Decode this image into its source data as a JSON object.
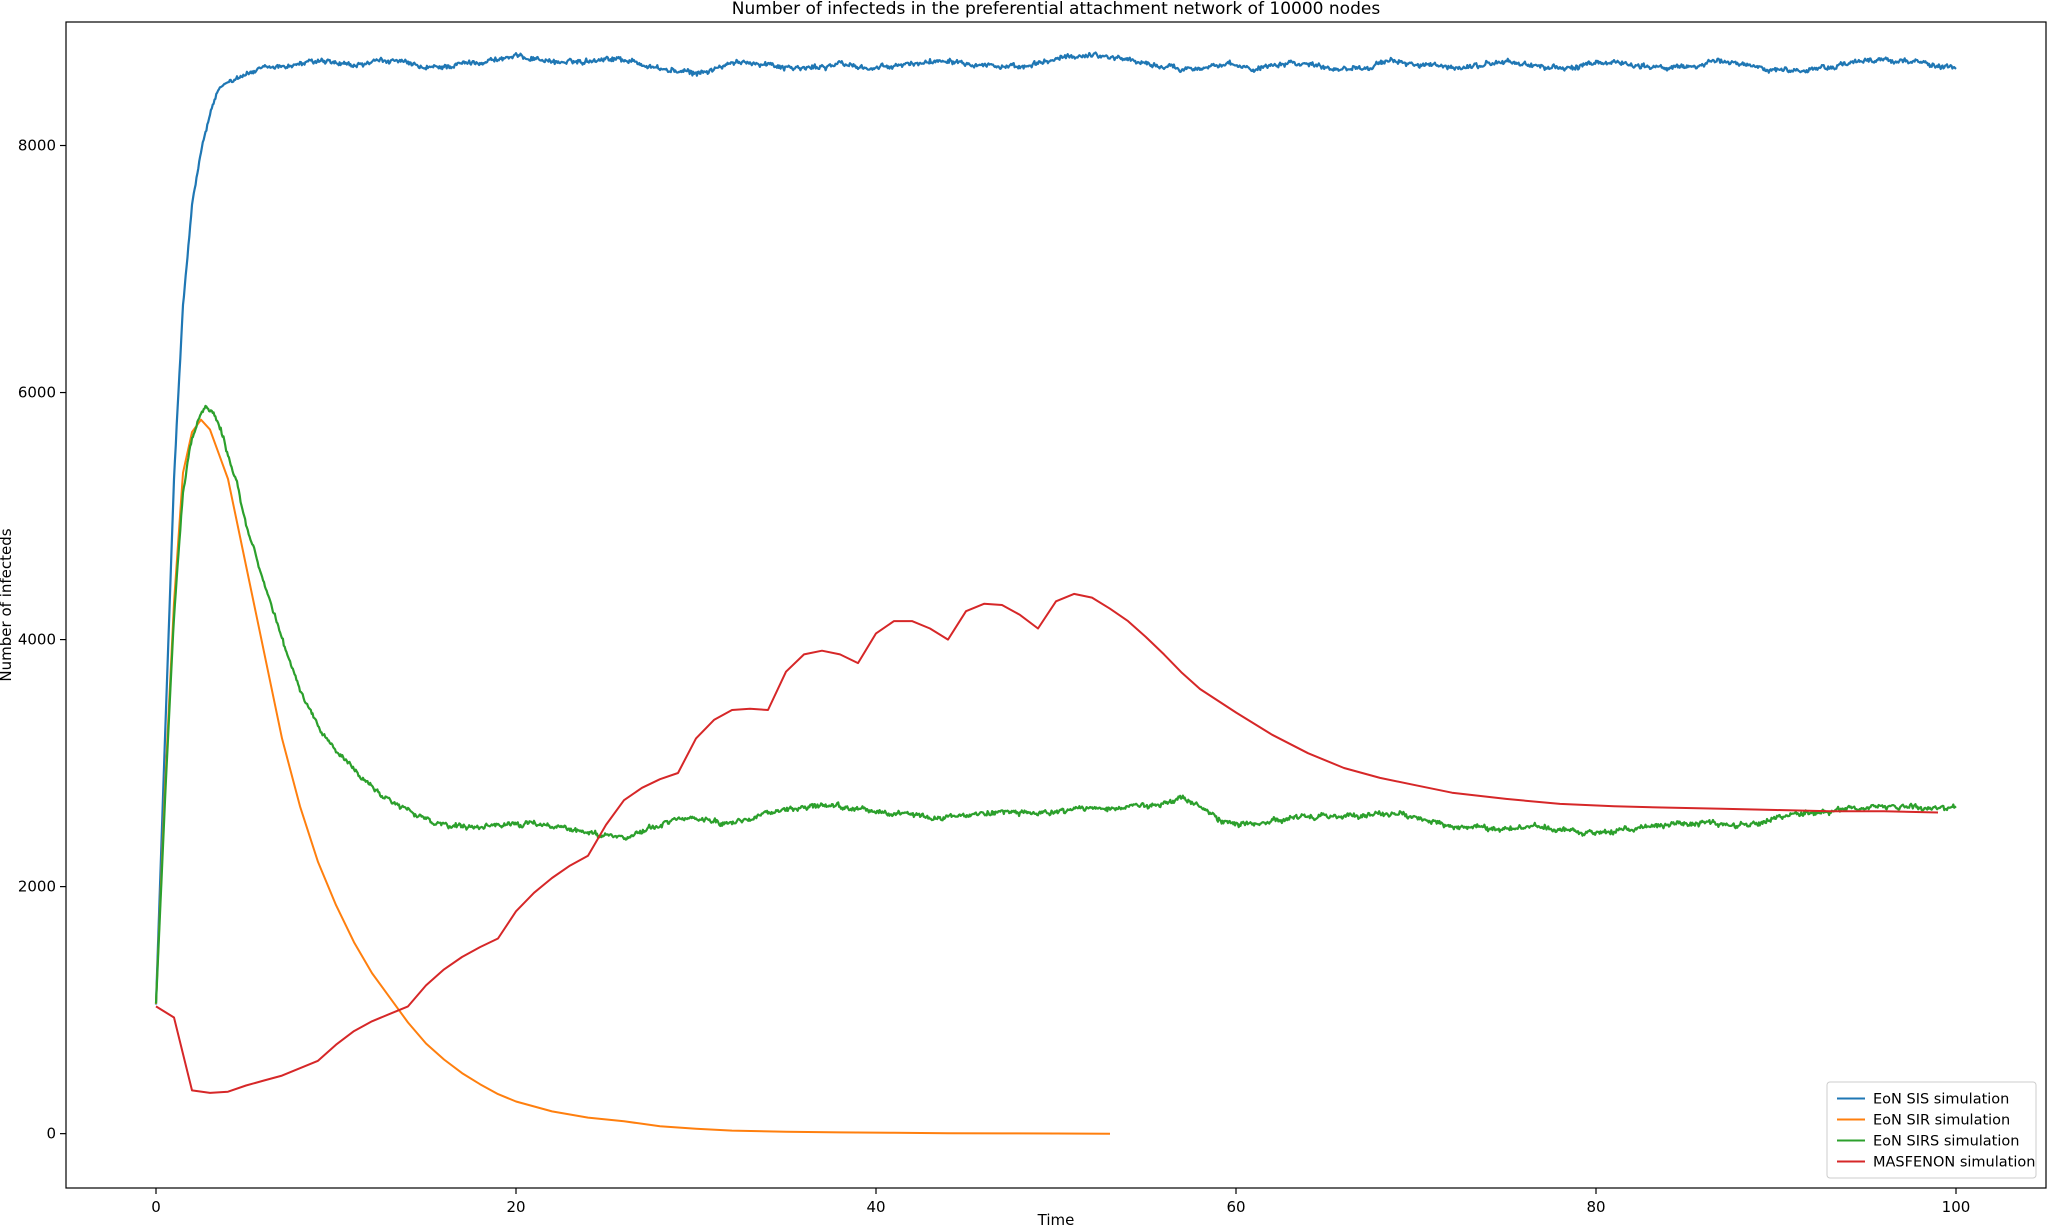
{
  "chart_data": {
    "type": "line",
    "title": "Number of infecteds in the preferential attachment network of 10000 nodes",
    "xlabel": "Time",
    "ylabel": "Number of infecteds",
    "xlim": [
      -5,
      105
    ],
    "ylim": [
      -440,
      9000
    ],
    "xticks": [
      0,
      20,
      40,
      60,
      80,
      100
    ],
    "yticks": [
      0,
      2000,
      4000,
      6000,
      8000
    ],
    "grid": false,
    "legend_position": "lower right",
    "series": [
      {
        "name": "EoN SIS simulation",
        "color": "#1f77b4",
        "noisy": true,
        "x": [
          0,
          0.5,
          1,
          1.5,
          2,
          2.5,
          3,
          3.5,
          4,
          4.5,
          5,
          5.5,
          6,
          7,
          8,
          9,
          10,
          11,
          12,
          13,
          14,
          15,
          16,
          17,
          18,
          19,
          20,
          21,
          22,
          23,
          24,
          25,
          26,
          27,
          28,
          29,
          30,
          31,
          32,
          33,
          34,
          35,
          36,
          37,
          38,
          39,
          40,
          41,
          42,
          43,
          44,
          45,
          46,
          47,
          48,
          49,
          50,
          51,
          52,
          53,
          54,
          55,
          56,
          57,
          58,
          59,
          60,
          61,
          62,
          63,
          64,
          65,
          66,
          67,
          68,
          69,
          70,
          71,
          72,
          73,
          74,
          75,
          76,
          77,
          78,
          79,
          80,
          81,
          82,
          83,
          84,
          85,
          86,
          87,
          88,
          89,
          90,
          91,
          92,
          93,
          94,
          95,
          96,
          97,
          98,
          99,
          100
        ],
        "y": [
          1050,
          3200,
          5300,
          6700,
          7500,
          7950,
          8250,
          8450,
          8520,
          8560,
          8580,
          8600,
          8620,
          8640,
          8660,
          8680,
          8660,
          8640,
          8670,
          8690,
          8660,
          8620,
          8640,
          8660,
          8680,
          8700,
          8720,
          8710,
          8680,
          8670,
          8690,
          8710,
          8700,
          8660,
          8620,
          8600,
          8580,
          8620,
          8660,
          8680,
          8660,
          8640,
          8620,
          8640,
          8660,
          8640,
          8620,
          8640,
          8660,
          8680,
          8700,
          8680,
          8660,
          8640,
          8620,
          8660,
          8700,
          8720,
          8740,
          8720,
          8700,
          8660,
          8640,
          8620,
          8640,
          8650,
          8640,
          8620,
          8660,
          8680,
          8660,
          8640,
          8620,
          8640,
          8660,
          8680,
          8660,
          8640,
          8620,
          8640,
          8660,
          8680,
          8660,
          8640,
          8620,
          8640,
          8660,
          8680,
          8660,
          8640,
          8620,
          8640,
          8660,
          8680,
          8660,
          8640,
          8620,
          8600,
          8620,
          8640,
          8660,
          8680,
          8700,
          8690,
          8670,
          8650,
          8620
        ]
      },
      {
        "name": "EoN SIR simulation",
        "color": "#ff7f0e",
        "noisy": false,
        "x": [
          0,
          0.5,
          1,
          1.5,
          2,
          2.5,
          3,
          3.5,
          4,
          5,
          6,
          7,
          8,
          9,
          10,
          11,
          12,
          13,
          14,
          15,
          16,
          17,
          18,
          19,
          20,
          22,
          24,
          26,
          28,
          30,
          32,
          35,
          38,
          41,
          44,
          47,
          50,
          53
        ],
        "y": [
          1050,
          2800,
          4300,
          5350,
          5680,
          5780,
          5700,
          5500,
          5300,
          4600,
          3900,
          3200,
          2650,
          2200,
          1850,
          1550,
          1300,
          1100,
          900,
          730,
          600,
          490,
          400,
          320,
          260,
          180,
          130,
          100,
          60,
          40,
          25,
          15,
          10,
          7,
          4,
          2,
          1,
          0
        ]
      },
      {
        "name": "EoN SIRS simulation",
        "color": "#2ca02c",
        "noisy": true,
        "x": [
          0,
          0.5,
          1,
          1.5,
          2,
          2.5,
          2.8,
          3.2,
          3.6,
          4,
          4.5,
          5,
          5.5,
          6,
          7,
          8,
          9,
          10,
          11,
          12,
          13,
          14,
          15,
          16,
          17,
          18,
          19,
          20,
          21,
          22,
          23,
          24,
          25,
          26,
          27,
          28,
          29,
          30,
          31,
          32,
          33,
          34,
          35,
          36,
          37,
          38,
          39,
          40,
          41,
          42,
          43,
          44,
          45,
          46,
          47,
          48,
          49,
          50,
          51,
          52,
          53,
          54,
          55,
          56,
          57,
          58,
          59,
          60,
          61,
          62,
          63,
          64,
          65,
          66,
          67,
          68,
          69,
          70,
          71,
          72,
          73,
          74,
          75,
          76,
          77,
          78,
          79,
          80,
          81,
          82,
          83,
          84,
          85,
          86,
          87,
          88,
          89,
          90,
          91,
          92,
          93,
          94,
          95,
          96,
          97,
          98,
          99,
          100
        ],
        "y": [
          1050,
          2700,
          4200,
          5200,
          5650,
          5830,
          5880,
          5850,
          5700,
          5500,
          5250,
          4950,
          4700,
          4450,
          4000,
          3600,
          3300,
          3100,
          2950,
          2800,
          2700,
          2620,
          2540,
          2500,
          2480,
          2470,
          2490,
          2510,
          2500,
          2490,
          2470,
          2440,
          2420,
          2400,
          2450,
          2500,
          2540,
          2550,
          2530,
          2520,
          2560,
          2600,
          2620,
          2640,
          2650,
          2640,
          2620,
          2600,
          2590,
          2580,
          2570,
          2560,
          2570,
          2600,
          2620,
          2600,
          2580,
          2600,
          2620,
          2640,
          2650,
          2660,
          2650,
          2680,
          2700,
          2650,
          2550,
          2510,
          2500,
          2520,
          2560,
          2580,
          2570,
          2560,
          2570,
          2590,
          2580,
          2560,
          2520,
          2490,
          2470,
          2460,
          2470,
          2480,
          2470,
          2460,
          2450,
          2440,
          2450,
          2470,
          2490,
          2500,
          2510,
          2520,
          2510,
          2500,
          2520,
          2560,
          2580,
          2600,
          2610,
          2620,
          2630,
          2650,
          2660,
          2650,
          2640,
          2650
        ]
      },
      {
        "name": "MASFENON simulation",
        "color": "#d62728",
        "noisy": false,
        "x": [
          0,
          1,
          2,
          3,
          4,
          5,
          6,
          7,
          8,
          9,
          10,
          11,
          12,
          13,
          14,
          15,
          16,
          17,
          18,
          19,
          20,
          21,
          22,
          23,
          24,
          25,
          26,
          27,
          28,
          29,
          30,
          31,
          32,
          33,
          34,
          35,
          36,
          37,
          38,
          39,
          40,
          41,
          42,
          43,
          44,
          45,
          46,
          47,
          48,
          49,
          50,
          51,
          52,
          53,
          54,
          55,
          56,
          57,
          58,
          60,
          62,
          64,
          66,
          68,
          70,
          72,
          75,
          78,
          81,
          84,
          87,
          90,
          93,
          96,
          99
        ],
        "y": [
          1030,
          940,
          350,
          330,
          340,
          390,
          430,
          470,
          530,
          590,
          720,
          830,
          910,
          970,
          1030,
          1200,
          1330,
          1430,
          1510,
          1580,
          1800,
          1950,
          2070,
          2170,
          2250,
          2500,
          2700,
          2800,
          2870,
          2920,
          3200,
          3350,
          3430,
          3440,
          3430,
          3740,
          3880,
          3910,
          3880,
          3810,
          4050,
          4150,
          4150,
          4090,
          4000,
          4230,
          4290,
          4280,
          4200,
          4090,
          4310,
          4370,
          4340,
          4250,
          4150,
          4020,
          3880,
          3730,
          3600,
          3410,
          3230,
          3080,
          2960,
          2880,
          2820,
          2760,
          2710,
          2670,
          2650,
          2640,
          2630,
          2620,
          2610,
          2610,
          2600
        ]
      }
    ]
  }
}
